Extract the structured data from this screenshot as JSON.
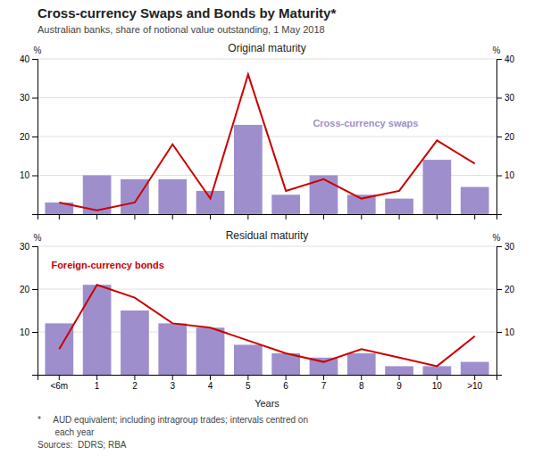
{
  "title": "Cross-currency Swaps and Bonds by Maturity*",
  "subtitle": "Australian banks, share of notional value outstanding, 1 May 2018",
  "footnotes": [
    "*     AUD equivalent; including intragroup trades; intervals centred on",
    "       each year",
    "Sources:  DDRS; RBA"
  ],
  "chart_data": [
    {
      "type": "bar",
      "title": "Original maturity",
      "categories": [
        "<6m",
        "1",
        "2",
        "3",
        "4",
        "5",
        "6",
        "7",
        "8",
        "9",
        "10",
        ">10"
      ],
      "series": [
        {
          "type": "bar",
          "color": "#9E8FCC",
          "values": [
            3,
            10,
            9,
            9,
            6,
            23,
            5,
            10,
            5,
            4,
            14,
            7
          ]
        },
        {
          "type": "line",
          "color": "#CC0000",
          "values": [
            3,
            1,
            3,
            18,
            4,
            36,
            6,
            9,
            4,
            6,
            19,
            13
          ]
        }
      ],
      "ylim": [
        0,
        40
      ],
      "yticks": [
        10,
        20,
        30,
        40
      ],
      "y2lim": [
        0,
        40
      ],
      "y2ticks": [
        10,
        20,
        30,
        40
      ],
      "ylabel": "%",
      "y2label": "%",
      "grid": true,
      "tick_labels": "y",
      "annotations": [
        {
          "text": "Cross-currency swaps",
          "color": "#9E8FCC"
        }
      ]
    },
    {
      "type": "bar",
      "title": "Residual maturity",
      "categories": [
        "<6m",
        "1",
        "2",
        "3",
        "4",
        "5",
        "6",
        "7",
        "8",
        "9",
        "10",
        ">10"
      ],
      "series": [
        {
          "type": "bar",
          "color": "#9E8FCC",
          "values": [
            12,
            21,
            15,
            12,
            11,
            7,
            5,
            4,
            5,
            2,
            2,
            3
          ]
        },
        {
          "type": "line",
          "color": "#CC0000",
          "values": [
            6,
            21,
            18,
            12,
            11,
            8,
            5,
            3,
            6,
            4,
            2,
            9
          ]
        }
      ],
      "ylim": [
        0,
        30
      ],
      "yticks": [
        10,
        20,
        30
      ],
      "y2lim": [
        0,
        30
      ],
      "y2ticks": [
        10,
        20,
        30
      ],
      "ylabel": "%",
      "y2label": "%",
      "xlabel": "Years",
      "grid": true,
      "annotations": [
        {
          "text": "Foreign-currency bonds",
          "color": "#CC0000"
        }
      ]
    }
  ]
}
